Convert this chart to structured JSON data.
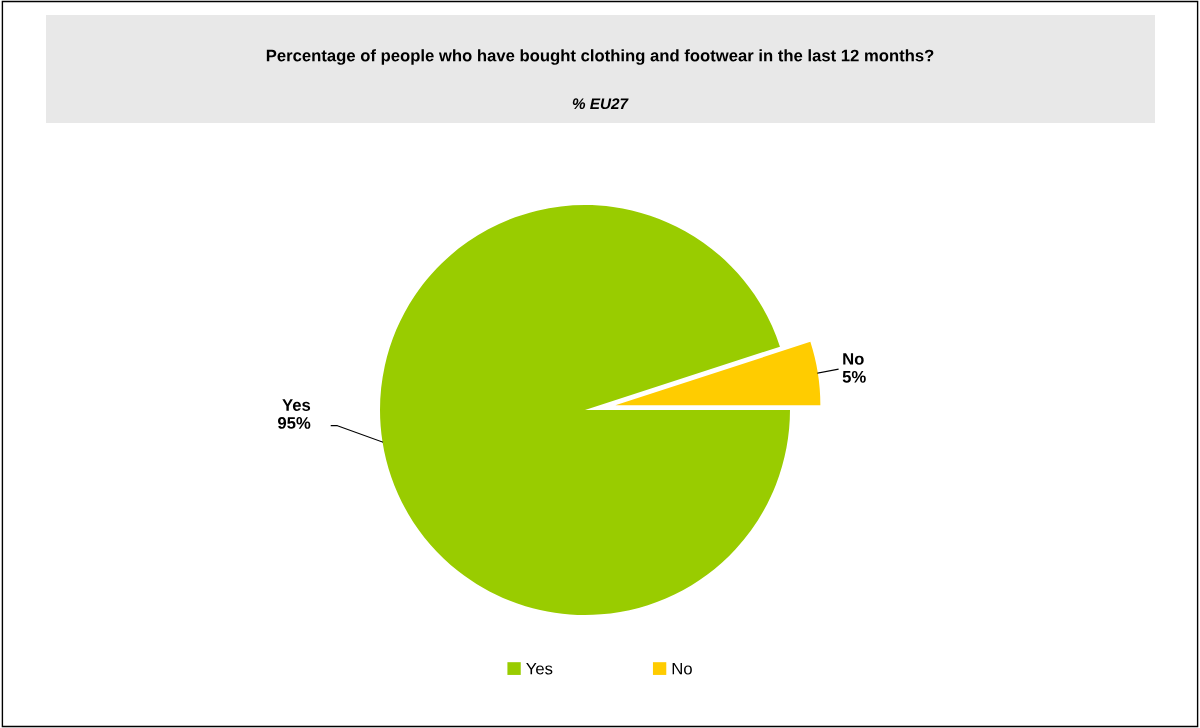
{
  "chart_data": {
    "type": "pie",
    "title": "Percentage of people who have bought clothing and footwear in the last 12 months?",
    "subtitle": "% EU27",
    "categories": [
      "Yes",
      "No"
    ],
    "values": [
      95,
      5
    ],
    "value_labels": [
      "95%",
      "5%"
    ],
    "colors": [
      "#99cc00",
      "#ffcc00"
    ],
    "data_labels": true,
    "legend": "bottom"
  }
}
